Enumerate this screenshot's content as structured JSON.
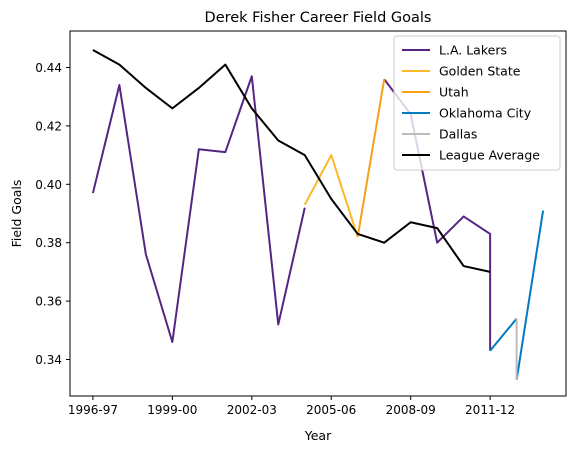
{
  "chart_data": {
    "type": "line",
    "title": "Derek Fisher Career Field Goals",
    "xlabel": "Year",
    "ylabel": "Field Goals",
    "x": [
      "1996-97",
      "1997-98",
      "1998-99",
      "1999-00",
      "2000-01",
      "2001-02",
      "2002-03",
      "2003-04",
      "2004-05",
      "2005-06",
      "2006-07",
      "2007-08",
      "2008-09",
      "2009-10",
      "2010-11",
      "2011-12",
      "2012-13",
      "2013-14"
    ],
    "x_ticks": [
      "1996-97",
      "1999-00",
      "2002-03",
      "2005-06",
      "2008-09",
      "2011-12"
    ],
    "y_ticks": [
      "0.34",
      "0.36",
      "0.38",
      "0.40",
      "0.42",
      "0.44"
    ],
    "ylim": [
      0.3275,
      0.4525
    ],
    "grid": false,
    "legend_position": "top-right",
    "series": [
      {
        "name": "L.A. Lakers",
        "color": "#552583",
        "points": [
          [
            "1996-97",
            0.397
          ],
          [
            "1997-98",
            0.434
          ],
          [
            "1998-99",
            0.376
          ],
          [
            "1999-00",
            0.346
          ],
          [
            "2000-01",
            0.412
          ],
          [
            "2001-02",
            0.411
          ],
          [
            "2002-03",
            0.437
          ],
          [
            "2003-04",
            0.352
          ],
          [
            "2004-05",
            0.392
          ]
        ]
      },
      {
        "name": "L.A. Lakers",
        "color": "#552583",
        "points": [
          [
            "2007-08",
            0.436
          ],
          [
            "2008-09",
            0.424
          ],
          [
            "2009-10",
            0.38
          ],
          [
            "2010-11",
            0.389
          ],
          [
            "2011-12",
            0.383
          ],
          [
            "2011-12",
            0.343
          ]
        ]
      },
      {
        "name": "Golden State",
        "color": "#FDB927",
        "points": [
          [
            "2004-05",
            0.393
          ],
          [
            "2005-06",
            0.41
          ],
          [
            "2006-07",
            0.382
          ]
        ]
      },
      {
        "name": "Utah",
        "color": "#F9A01B",
        "points": [
          [
            "2006-07",
            0.382
          ],
          [
            "2007-08",
            0.436
          ]
        ]
      },
      {
        "name": "Oklahoma City",
        "color": "#007AC1",
        "points": [
          [
            "2011-12",
            0.343
          ],
          [
            "2012-13",
            0.354
          ]
        ]
      },
      {
        "name": "Oklahoma City",
        "color": "#007AC1",
        "points": [
          [
            "2012-13",
            0.333
          ],
          [
            "2013-14",
            0.391
          ]
        ]
      },
      {
        "name": "Dallas",
        "color": "#BBBBBB",
        "points": [
          [
            "2012-13",
            0.354
          ],
          [
            "2012-13",
            0.333
          ]
        ]
      },
      {
        "name": "League Average",
        "color": "#000000",
        "points": [
          [
            "1996-97",
            0.446
          ],
          [
            "1997-98",
            0.441
          ],
          [
            "1998-99",
            0.433
          ],
          [
            "1999-00",
            0.426
          ],
          [
            "2000-01",
            0.433
          ],
          [
            "2001-02",
            0.441
          ],
          [
            "2002-03",
            0.426
          ],
          [
            "2003-04",
            0.415
          ],
          [
            "2004-05",
            0.41
          ],
          [
            "2005-06",
            0.395
          ],
          [
            "2006-07",
            0.383
          ],
          [
            "2007-08",
            0.38
          ],
          [
            "2008-09",
            0.387
          ],
          [
            "2009-10",
            0.385
          ],
          [
            "2010-11",
            0.372
          ],
          [
            "2011-12",
            0.37
          ]
        ]
      }
    ],
    "legend": [
      {
        "label": "L.A. Lakers",
        "color": "#552583"
      },
      {
        "label": "Golden State",
        "color": "#FDB927"
      },
      {
        "label": "Utah",
        "color": "#F9A01B"
      },
      {
        "label": "Oklahoma City",
        "color": "#007AC1"
      },
      {
        "label": "Dallas",
        "color": "#BBBBBB"
      },
      {
        "label": "League Average",
        "color": "#000000"
      }
    ]
  }
}
